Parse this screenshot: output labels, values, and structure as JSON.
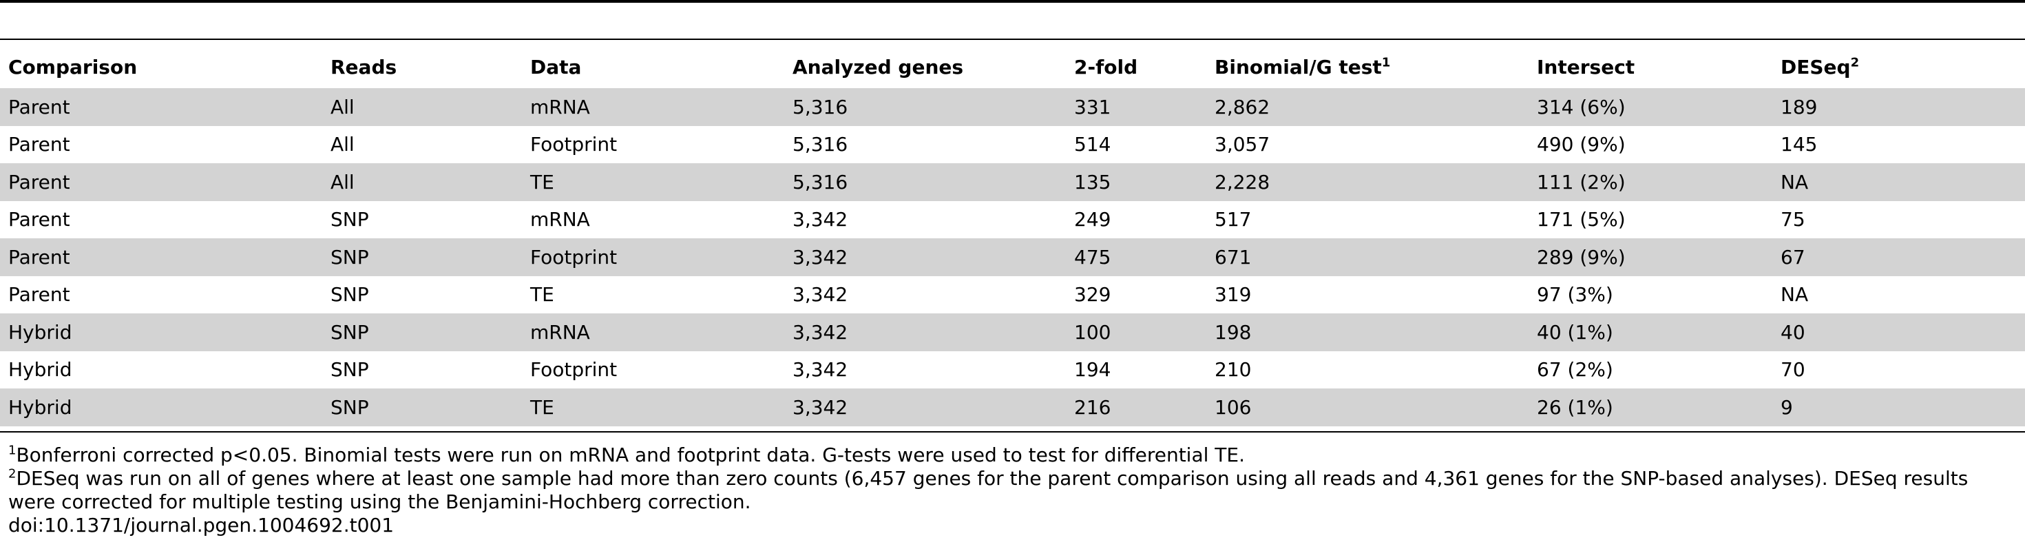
{
  "table": {
    "headers": [
      {
        "label": "Comparison",
        "sup": ""
      },
      {
        "label": "Reads",
        "sup": ""
      },
      {
        "label": "Data",
        "sup": ""
      },
      {
        "label": "Analyzed genes",
        "sup": ""
      },
      {
        "label": "2-fold",
        "sup": ""
      },
      {
        "label": "Binomial/G test",
        "sup": "1"
      },
      {
        "label": "Intersect",
        "sup": ""
      },
      {
        "label": "DESeq",
        "sup": "2"
      }
    ],
    "rows": [
      [
        "Parent",
        "All",
        "mRNA",
        "5,316",
        "331",
        "2,862",
        "314 (6%)",
        "189"
      ],
      [
        "Parent",
        "All",
        "Footprint",
        "5,316",
        "514",
        "3,057",
        "490 (9%)",
        "145"
      ],
      [
        "Parent",
        "All",
        "TE",
        "5,316",
        "135",
        "2,228",
        "111 (2%)",
        "NA"
      ],
      [
        "Parent",
        "SNP",
        "mRNA",
        "3,342",
        "249",
        "517",
        "171 (5%)",
        "75"
      ],
      [
        "Parent",
        "SNP",
        "Footprint",
        "3,342",
        "475",
        "671",
        "289 (9%)",
        "67"
      ],
      [
        "Parent",
        "SNP",
        "TE",
        "3,342",
        "329",
        "319",
        "97 (3%)",
        "NA"
      ],
      [
        "Hybrid",
        "SNP",
        "mRNA",
        "3,342",
        "100",
        "198",
        "40 (1%)",
        "40"
      ],
      [
        "Hybrid",
        "SNP",
        "Footprint",
        "3,342",
        "194",
        "210",
        "67 (2%)",
        "70"
      ],
      [
        "Hybrid",
        "SNP",
        "TE",
        "3,342",
        "216",
        "106",
        "26 (1%)",
        "9"
      ]
    ]
  },
  "footnotes": [
    {
      "mark": "1",
      "text": "Bonferroni corrected p<0.05. Binomial tests were run on mRNA and footprint data. G-tests were used to test for differential TE."
    },
    {
      "mark": "2",
      "text": "DESeq was run on all of genes where at least one sample had more than zero counts (6,457 genes for the parent comparison using all reads and 4,361 genes for the SNP-based analyses). DESeq results were corrected for multiple testing using the Benjamini-Hochberg correction."
    }
  ],
  "doi": "doi:10.1371/journal.pgen.1004692.t001"
}
